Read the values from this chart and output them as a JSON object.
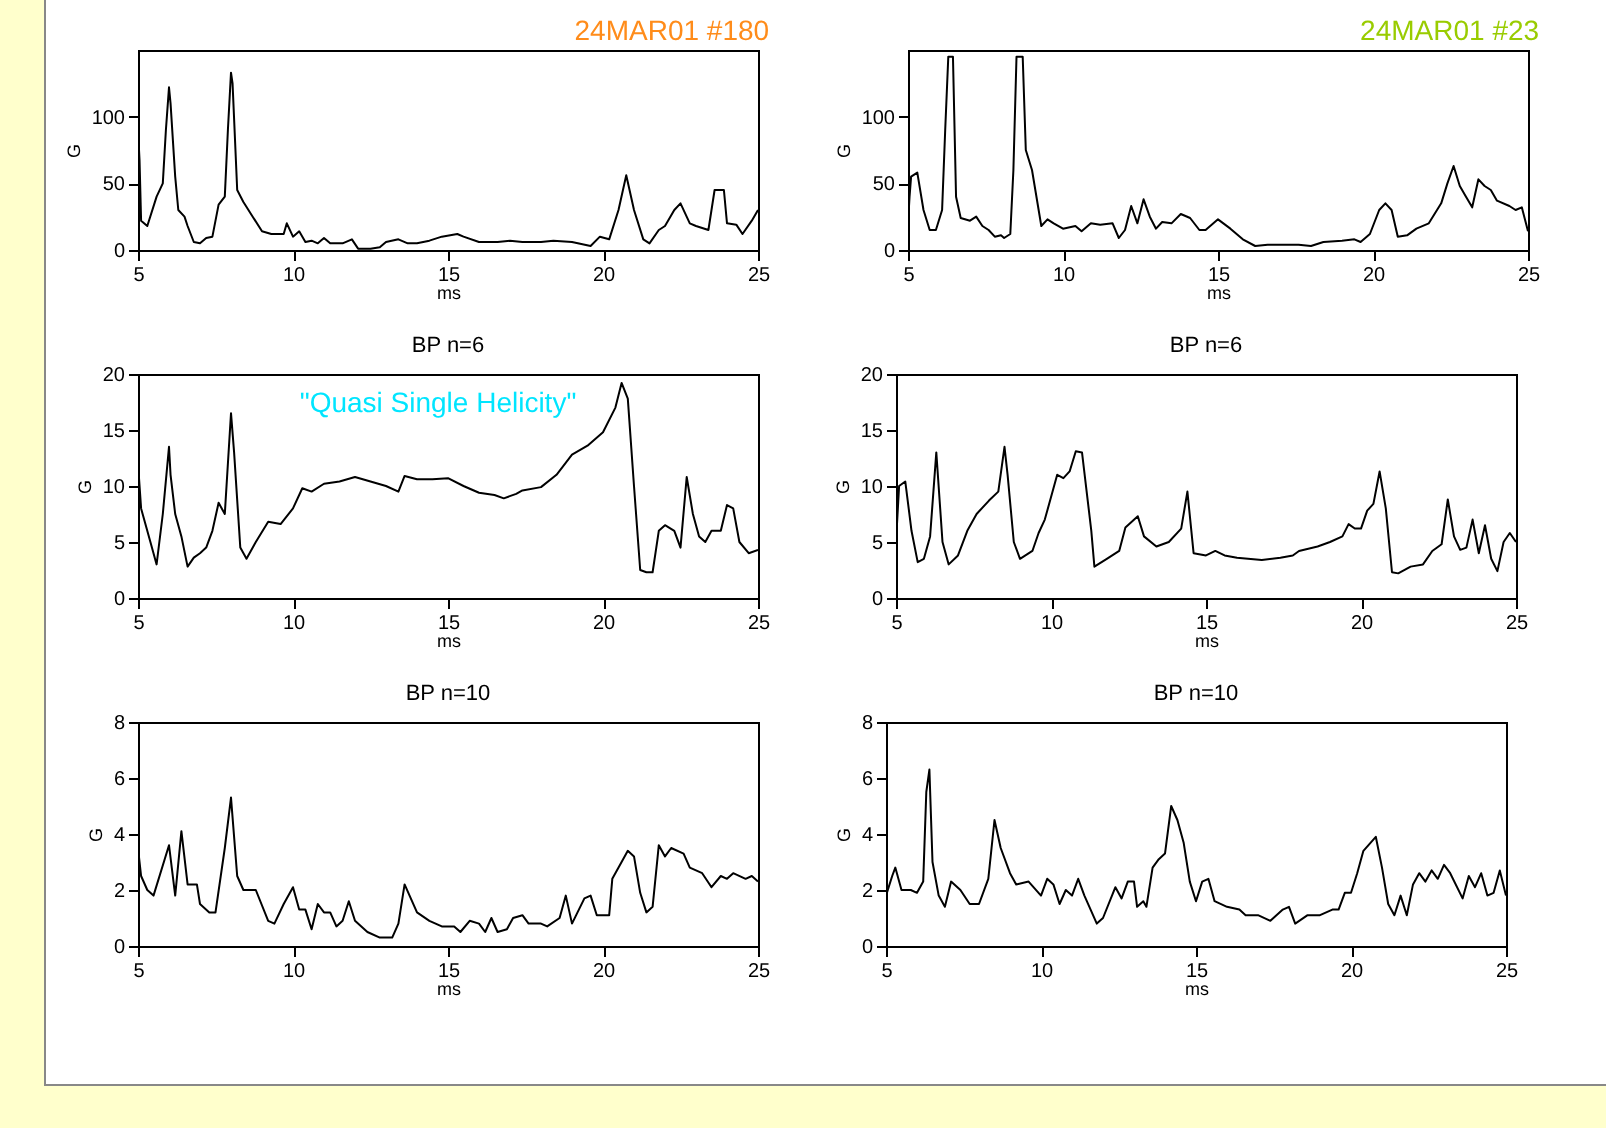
{
  "chart_data": [
    {
      "type": "line",
      "title": "24MAR01 #180",
      "xlabel": "ms",
      "ylabel": "G",
      "xlim": [
        5,
        25
      ],
      "xticks": [
        5,
        10,
        15,
        20,
        25
      ],
      "ylim": [
        0,
        150
      ],
      "yticks": [
        0,
        50,
        100
      ],
      "series": [
        {
          "color": "#000000",
          "x": [
            5.0,
            5.05,
            5.1,
            5.3,
            5.6,
            5.8,
            5.9,
            6.0,
            6.05,
            6.2,
            6.3,
            6.5,
            6.6,
            6.8,
            7.0,
            7.2,
            7.4,
            7.6,
            7.8,
            7.9,
            8.0,
            8.05,
            8.2,
            8.4,
            8.7,
            9.0,
            9.3,
            9.7,
            9.8,
            10.0,
            10.2,
            10.4,
            10.6,
            10.8,
            11.0,
            11.2,
            11.6,
            11.9,
            12.1,
            12.5,
            12.8,
            13.0,
            13.4,
            13.7,
            14.0,
            14.4,
            14.8,
            15.3,
            15.5,
            16.0,
            16.6,
            17.0,
            17.4,
            18.0,
            18.4,
            19.0,
            19.6,
            19.9,
            20.2,
            20.5,
            20.75,
            21.0,
            21.3,
            21.5,
            21.8,
            22.0,
            22.3,
            22.5,
            22.8,
            23.0,
            23.4,
            23.6,
            23.9,
            24.0,
            24.3,
            24.5,
            24.8,
            25.0
          ],
          "values": [
            90,
            67,
            22,
            18,
            40,
            50,
            90,
            122,
            110,
            55,
            30,
            25,
            18,
            6,
            5,
            9,
            10,
            34,
            40,
            90,
            133,
            125,
            45,
            36,
            25,
            14,
            12,
            12,
            20,
            10,
            14,
            6,
            7,
            5,
            9,
            5,
            5,
            8,
            1,
            1,
            2,
            6,
            8,
            5,
            5,
            7,
            10,
            12,
            10,
            6,
            6,
            7,
            6,
            6,
            7,
            6,
            3,
            10,
            8,
            30,
            56,
            30,
            8,
            5,
            15,
            18,
            30,
            35,
            20,
            18,
            15,
            45,
            45,
            20,
            19,
            12,
            22,
            30
          ]
        }
      ]
    },
    {
      "type": "line",
      "title": "24MAR01 #23",
      "xlabel": "ms",
      "ylabel": "G",
      "xlim": [
        5,
        25
      ],
      "xticks": [
        5,
        10,
        15,
        20,
        25
      ],
      "ylim": [
        0,
        150
      ],
      "yticks": [
        0,
        50,
        100
      ],
      "series": [
        {
          "color": "#000000",
          "x": [
            5.0,
            5.05,
            5.1,
            5.3,
            5.5,
            5.7,
            5.9,
            6.1,
            6.2,
            6.3,
            6.45,
            6.55,
            6.7,
            7.0,
            7.2,
            7.4,
            7.6,
            7.8,
            8.0,
            8.1,
            8.3,
            8.4,
            8.5,
            8.7,
            8.8,
            9.0,
            9.3,
            9.5,
            9.7,
            10.0,
            10.4,
            10.6,
            10.9,
            11.2,
            11.6,
            11.8,
            12.0,
            12.2,
            12.4,
            12.6,
            12.8,
            13.0,
            13.2,
            13.5,
            13.8,
            14.1,
            14.4,
            14.6,
            15.0,
            15.4,
            15.8,
            16.2,
            16.6,
            17.0,
            17.6,
            18.0,
            18.4,
            19.0,
            19.4,
            19.6,
            19.9,
            20.2,
            20.4,
            20.6,
            20.8,
            21.1,
            21.4,
            21.8,
            22.2,
            22.4,
            22.6,
            22.8,
            23.0,
            23.2,
            23.4,
            23.6,
            23.8,
            24.0,
            24.4,
            24.6,
            24.8,
            25.0
          ],
          "values": [
            20,
            40,
            55,
            58,
            30,
            15,
            15,
            30,
            90,
            145,
            145,
            40,
            24,
            22,
            25,
            18,
            15,
            10,
            11,
            9,
            12,
            60,
            145,
            145,
            75,
            60,
            18,
            23,
            20,
            16,
            18,
            14,
            20,
            19,
            20,
            9,
            15,
            33,
            20,
            38,
            25,
            16,
            21,
            20,
            27,
            24,
            15,
            15,
            23,
            16,
            8,
            3,
            4,
            4,
            4,
            3,
            6,
            7,
            8,
            6,
            12,
            30,
            35,
            30,
            10,
            11,
            16,
            20,
            35,
            50,
            63,
            48,
            40,
            32,
            53,
            48,
            45,
            37,
            33,
            30,
            32,
            14
          ]
        }
      ]
    },
    {
      "type": "line",
      "title": "BP n=6",
      "xlabel": "ms",
      "ylabel": "G",
      "xlim": [
        5,
        25
      ],
      "xticks": [
        5,
        10,
        15,
        20,
        25
      ],
      "ylim": [
        0,
        20
      ],
      "yticks": [
        0,
        5,
        10,
        15,
        20
      ],
      "annotations": [
        "\"Quasi Single Helicity\""
      ],
      "series": [
        {
          "color": "#000000",
          "x": [
            5.0,
            5.1,
            5.4,
            5.6,
            5.8,
            6.0,
            6.05,
            6.2,
            6.4,
            6.6,
            6.8,
            7.0,
            7.2,
            7.4,
            7.6,
            7.8,
            8.0,
            8.1,
            8.3,
            8.5,
            8.8,
            9.2,
            9.6,
            10.0,
            10.3,
            10.6,
            11.0,
            11.5,
            12.0,
            12.5,
            13.0,
            13.4,
            13.6,
            14.0,
            14.5,
            15.0,
            15.5,
            16.0,
            16.5,
            16.8,
            17.2,
            17.4,
            18.0,
            18.5,
            19.0,
            19.5,
            20.0,
            20.4,
            20.6,
            20.8,
            21.0,
            21.2,
            21.4,
            21.6,
            21.8,
            22.0,
            22.3,
            22.5,
            22.7,
            22.9,
            23.1,
            23.3,
            23.5,
            23.8,
            24.0,
            24.2,
            24.4,
            24.7,
            25.0
          ],
          "values": [
            12,
            8,
            5,
            3,
            7.5,
            13.5,
            11,
            7.5,
            5.5,
            2.8,
            3.6,
            4,
            4.5,
            6,
            8.5,
            7.5,
            16.5,
            13,
            4.5,
            3.5,
            5,
            6.8,
            6.6,
            8,
            9.8,
            9.5,
            10.2,
            10.4,
            10.8,
            10.4,
            10,
            9.5,
            10.9,
            10.6,
            10.6,
            10.7,
            10,
            9.4,
            9.2,
            8.9,
            9.3,
            9.6,
            9.9,
            11,
            12.8,
            13.6,
            14.8,
            17,
            19.2,
            17.8,
            10,
            2.5,
            2.3,
            2.3,
            6,
            6.5,
            6,
            4.5,
            10.8,
            7.5,
            5.5,
            5,
            6,
            6,
            8.3,
            8,
            5,
            4,
            4.3
          ]
        }
      ]
    },
    {
      "type": "line",
      "title": "BP n=6",
      "xlabel": "ms",
      "ylabel": "G",
      "xlim": [
        5,
        25
      ],
      "xticks": [
        5,
        10,
        15,
        20,
        25
      ],
      "ylim": [
        0,
        20
      ],
      "yticks": [
        0,
        5,
        10,
        15,
        20
      ],
      "series": [
        {
          "color": "#000000",
          "x": [
            5.0,
            5.1,
            5.3,
            5.5,
            5.7,
            5.9,
            6.1,
            6.3,
            6.35,
            6.5,
            6.7,
            7.0,
            7.3,
            7.6,
            8.0,
            8.3,
            8.5,
            8.6,
            8.8,
            9.0,
            9.4,
            9.6,
            9.8,
            10.2,
            10.4,
            10.6,
            10.8,
            11.0,
            11.3,
            11.4,
            11.8,
            12.2,
            12.4,
            12.8,
            13.0,
            13.4,
            13.8,
            14.2,
            14.4,
            14.6,
            15.0,
            15.3,
            15.6,
            16.0,
            16.8,
            17.4,
            17.8,
            18.0,
            18.6,
            19.0,
            19.4,
            19.6,
            19.8,
            20.0,
            20.2,
            20.4,
            20.6,
            20.8,
            21.0,
            21.2,
            21.6,
            22.0,
            22.3,
            22.6,
            22.8,
            23.0,
            23.2,
            23.4,
            23.6,
            23.8,
            24.0,
            24.2,
            24.4,
            24.6,
            24.8,
            25.0
          ],
          "values": [
            5,
            10,
            10.4,
            6,
            3.2,
            3.5,
            5.5,
            13,
            11,
            5,
            3,
            3.8,
            6,
            7.5,
            8.7,
            9.5,
            13.5,
            11,
            5,
            3.5,
            4.2,
            5.8,
            7,
            11,
            10.7,
            11.3,
            13.1,
            13,
            6,
            2.8,
            3.5,
            4.2,
            6.3,
            7.3,
            5.5,
            4.6,
            5,
            6.2,
            9.5,
            4,
            3.8,
            4.2,
            3.8,
            3.6,
            3.4,
            3.6,
            3.8,
            4.2,
            4.6,
            5,
            5.5,
            6.6,
            6.2,
            6.2,
            7.8,
            8.4,
            11.3,
            8,
            2.3,
            2.2,
            2.8,
            3,
            4.2,
            4.8,
            8.8,
            5.5,
            4.3,
            4.5,
            7,
            4,
            6.5,
            3.5,
            2.4,
            5,
            5.8,
            5
          ]
        }
      ]
    },
    {
      "type": "line",
      "title": "BP n=10",
      "xlabel": "ms",
      "ylabel": "G",
      "xlim": [
        5,
        25
      ],
      "xticks": [
        5,
        10,
        15,
        20,
        25
      ],
      "ylim": [
        0,
        8
      ],
      "yticks": [
        0,
        2,
        4,
        6,
        8
      ],
      "series": [
        {
          "color": "#000000",
          "x": [
            5.0,
            5.1,
            5.3,
            5.5,
            6.0,
            6.2,
            6.4,
            6.6,
            6.9,
            7.0,
            7.3,
            7.5,
            7.8,
            8.0,
            8.2,
            8.4,
            8.8,
            9.2,
            9.4,
            9.7,
            10.0,
            10.2,
            10.4,
            10.6,
            10.8,
            11.0,
            11.2,
            11.4,
            11.6,
            11.8,
            12.0,
            12.4,
            12.8,
            13.2,
            13.4,
            13.6,
            13.8,
            14.0,
            14.4,
            14.8,
            15.2,
            15.4,
            15.7,
            16.0,
            16.2,
            16.4,
            16.6,
            16.9,
            17.1,
            17.4,
            17.6,
            18.0,
            18.2,
            18.6,
            18.8,
            19.0,
            19.4,
            19.6,
            19.8,
            20.2,
            20.3,
            20.6,
            20.8,
            21.0,
            21.2,
            21.4,
            21.6,
            21.8,
            22.0,
            22.2,
            22.6,
            22.8,
            23.2,
            23.5,
            23.8,
            24.0,
            24.2,
            24.6,
            24.8,
            25.0
          ],
          "values": [
            3.5,
            2.5,
            2,
            1.8,
            3.6,
            1.8,
            4.1,
            2.2,
            2.2,
            1.5,
            1.2,
            1.2,
            3.5,
            5.3,
            2.5,
            2,
            2,
            0.9,
            0.8,
            1.5,
            2.1,
            1.3,
            1.3,
            0.6,
            1.5,
            1.2,
            1.2,
            0.7,
            0.9,
            1.6,
            0.9,
            0.5,
            0.3,
            0.3,
            0.8,
            2.2,
            1.7,
            1.2,
            0.9,
            0.7,
            0.7,
            0.5,
            0.9,
            0.8,
            0.5,
            1,
            0.5,
            0.6,
            1,
            1.1,
            0.8,
            0.8,
            0.7,
            1,
            1.8,
            0.8,
            1.7,
            1.8,
            1.1,
            1.1,
            2.4,
            3,
            3.4,
            3.2,
            1.9,
            1.2,
            1.4,
            3.6,
            3.2,
            3.5,
            3.3,
            2.8,
            2.6,
            2.1,
            2.5,
            2.4,
            2.6,
            2.4,
            2.5,
            2.3
          ]
        }
      ]
    },
    {
      "type": "line",
      "title": "BP n=10",
      "xlabel": "ms",
      "ylabel": "G",
      "xlim": [
        5,
        25
      ],
      "xticks": [
        5,
        10,
        15,
        20,
        25
      ],
      "ylim": [
        0,
        8
      ],
      "yticks": [
        0,
        2,
        4,
        6,
        8
      ],
      "series": [
        {
          "color": "#000000",
          "x": [
            5.0,
            5.2,
            5.3,
            5.5,
            5.8,
            6.0,
            6.2,
            6.3,
            6.4,
            6.5,
            6.7,
            6.9,
            7.1,
            7.4,
            7.7,
            8.0,
            8.3,
            8.5,
            8.7,
            9.0,
            9.2,
            9.6,
            10.0,
            10.2,
            10.4,
            10.6,
            10.8,
            11.0,
            11.2,
            11.4,
            11.8,
            12.0,
            12.4,
            12.6,
            12.8,
            13.0,
            13.1,
            13.3,
            13.4,
            13.6,
            13.8,
            14.0,
            14.2,
            14.4,
            14.6,
            14.8,
            15.0,
            15.2,
            15.4,
            15.6,
            16.0,
            16.4,
            16.6,
            17.0,
            17.4,
            17.8,
            18.0,
            18.2,
            18.6,
            19.0,
            19.4,
            19.6,
            19.8,
            20.0,
            20.2,
            20.4,
            20.8,
            21.0,
            21.2,
            21.4,
            21.6,
            21.8,
            22.0,
            22.2,
            22.4,
            22.6,
            22.8,
            23.0,
            23.2,
            23.6,
            23.8,
            24.0,
            24.2,
            24.4,
            24.6,
            24.8,
            25.0
          ],
          "values": [
            1.8,
            2.5,
            2.8,
            2,
            2,
            1.9,
            2.3,
            5.5,
            6.3,
            3,
            1.8,
            1.4,
            2.3,
            2,
            1.5,
            1.5,
            2.4,
            4.5,
            3.5,
            2.6,
            2.2,
            2.3,
            1.8,
            2.4,
            2.2,
            1.5,
            2,
            1.8,
            2.4,
            1.8,
            0.8,
            1,
            2.1,
            1.7,
            2.3,
            2.3,
            1.4,
            1.6,
            1.4,
            2.8,
            3.1,
            3.3,
            5,
            4.5,
            3.7,
            2.3,
            1.6,
            2.3,
            2.4,
            1.6,
            1.4,
            1.3,
            1.1,
            1.1,
            0.9,
            1.3,
            1.4,
            0.8,
            1.1,
            1.1,
            1.3,
            1.3,
            1.9,
            1.9,
            2.6,
            3.4,
            3.9,
            2.8,
            1.5,
            1.1,
            1.8,
            1.1,
            2.2,
            2.6,
            2.3,
            2.7,
            2.4,
            2.9,
            2.6,
            1.7,
            2.5,
            2.1,
            2.6,
            1.8,
            1.9,
            2.7,
            1.8
          ]
        }
      ]
    }
  ]
}
